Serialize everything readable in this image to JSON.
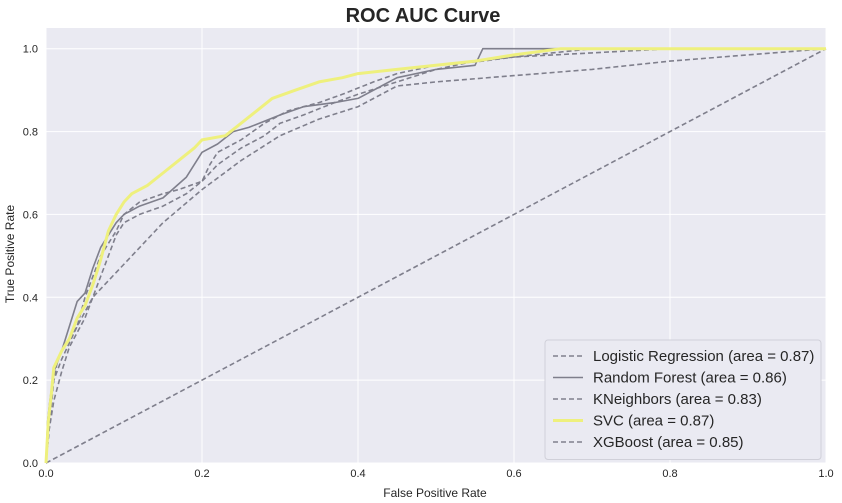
{
  "chart_data": {
    "type": "line",
    "title": "ROC AUC Curve",
    "xlabel": "False Positive Rate",
    "ylabel": "True Positive Rate",
    "xlim": [
      0,
      1
    ],
    "ylim": [
      0,
      1.05
    ],
    "x_ticks": [
      "0.0",
      "0.2",
      "0.4",
      "0.6",
      "0.8",
      "1.0"
    ],
    "y_ticks": [
      "0.0",
      "0.2",
      "0.4",
      "0.6",
      "0.8",
      "1.0"
    ],
    "grid": true,
    "background": "#eaeaf2",
    "legend_position": "lower right",
    "series": [
      {
        "name": "Logistic Regression (area = 0.87)",
        "color": "#7f7f8c",
        "style": "dashed",
        "points": [
          [
            0,
            0
          ],
          [
            0.003,
            0.08
          ],
          [
            0.005,
            0.15
          ],
          [
            0.01,
            0.2
          ],
          [
            0.015,
            0.25
          ],
          [
            0.02,
            0.27
          ],
          [
            0.03,
            0.3
          ],
          [
            0.04,
            0.33
          ],
          [
            0.05,
            0.4
          ],
          [
            0.07,
            0.5
          ],
          [
            0.09,
            0.56
          ],
          [
            0.1,
            0.6
          ],
          [
            0.12,
            0.63
          ],
          [
            0.15,
            0.65
          ],
          [
            0.17,
            0.66
          ],
          [
            0.2,
            0.68
          ],
          [
            0.21,
            0.72
          ],
          [
            0.22,
            0.75
          ],
          [
            0.25,
            0.78
          ],
          [
            0.28,
            0.82
          ],
          [
            0.31,
            0.85
          ],
          [
            0.35,
            0.87
          ],
          [
            0.38,
            0.89
          ],
          [
            0.42,
            0.92
          ],
          [
            0.45,
            0.94
          ],
          [
            0.5,
            0.96
          ],
          [
            0.56,
            0.97
          ],
          [
            0.6,
            0.98
          ],
          [
            0.7,
            1.0
          ],
          [
            1,
            1
          ]
        ]
      },
      {
        "name": "Random Forest (area = 0.86)",
        "color": "#7f7f8c",
        "style": "solid",
        "points": [
          [
            0,
            0
          ],
          [
            0.002,
            0.1
          ],
          [
            0.005,
            0.15
          ],
          [
            0.01,
            0.22
          ],
          [
            0.02,
            0.27
          ],
          [
            0.03,
            0.33
          ],
          [
            0.04,
            0.39
          ],
          [
            0.05,
            0.41
          ],
          [
            0.06,
            0.47
          ],
          [
            0.07,
            0.52
          ],
          [
            0.08,
            0.55
          ],
          [
            0.09,
            0.58
          ],
          [
            0.1,
            0.6
          ],
          [
            0.12,
            0.62
          ],
          [
            0.15,
            0.64
          ],
          [
            0.18,
            0.69
          ],
          [
            0.2,
            0.75
          ],
          [
            0.22,
            0.77
          ],
          [
            0.24,
            0.8
          ],
          [
            0.26,
            0.81
          ],
          [
            0.3,
            0.84
          ],
          [
            0.33,
            0.86
          ],
          [
            0.37,
            0.87
          ],
          [
            0.4,
            0.88
          ],
          [
            0.45,
            0.93
          ],
          [
            0.5,
            0.95
          ],
          [
            0.55,
            0.96
          ],
          [
            0.56,
            1.0
          ],
          [
            1,
            1
          ]
        ]
      },
      {
        "name": "KNeighbors (area = 0.83)",
        "color": "#7f7f8c",
        "style": "dashed",
        "points": [
          [
            0,
            0
          ],
          [
            0.005,
            0.1
          ],
          [
            0.01,
            0.2
          ],
          [
            0.02,
            0.25
          ],
          [
            0.04,
            0.33
          ],
          [
            0.06,
            0.4
          ],
          [
            0.08,
            0.44
          ],
          [
            0.11,
            0.5
          ],
          [
            0.15,
            0.58
          ],
          [
            0.2,
            0.66
          ],
          [
            0.25,
            0.73
          ],
          [
            0.3,
            0.79
          ],
          [
            0.35,
            0.83
          ],
          [
            0.4,
            0.86
          ],
          [
            0.45,
            0.91
          ],
          [
            0.5,
            0.92
          ],
          [
            0.6,
            0.935
          ],
          [
            0.7,
            0.95
          ],
          [
            0.8,
            0.97
          ],
          [
            0.9,
            0.985
          ],
          [
            1,
            1
          ]
        ]
      },
      {
        "name": "SVC (area = 0.87)",
        "color": "#eef07d",
        "style": "solid",
        "points": [
          [
            0,
            0
          ],
          [
            0.003,
            0.1
          ],
          [
            0.007,
            0.17
          ],
          [
            0.01,
            0.23
          ],
          [
            0.02,
            0.27
          ],
          [
            0.03,
            0.3
          ],
          [
            0.04,
            0.35
          ],
          [
            0.05,
            0.38
          ],
          [
            0.06,
            0.43
          ],
          [
            0.07,
            0.49
          ],
          [
            0.08,
            0.56
          ],
          [
            0.09,
            0.6
          ],
          [
            0.1,
            0.63
          ],
          [
            0.11,
            0.65
          ],
          [
            0.13,
            0.67
          ],
          [
            0.15,
            0.7
          ],
          [
            0.17,
            0.73
          ],
          [
            0.19,
            0.76
          ],
          [
            0.2,
            0.78
          ],
          [
            0.23,
            0.79
          ],
          [
            0.25,
            0.82
          ],
          [
            0.27,
            0.85
          ],
          [
            0.29,
            0.88
          ],
          [
            0.32,
            0.9
          ],
          [
            0.35,
            0.92
          ],
          [
            0.38,
            0.93
          ],
          [
            0.4,
            0.94
          ],
          [
            0.45,
            0.95
          ],
          [
            0.5,
            0.96
          ],
          [
            0.55,
            0.97
          ],
          [
            0.6,
            0.985
          ],
          [
            0.66,
            1.0
          ],
          [
            1,
            1
          ]
        ]
      },
      {
        "name": "XGBoost (area = 0.85)",
        "color": "#7f7f8c",
        "style": "dashed",
        "points": [
          [
            0,
            0
          ],
          [
            0.004,
            0.08
          ],
          [
            0.01,
            0.15
          ],
          [
            0.02,
            0.22
          ],
          [
            0.03,
            0.28
          ],
          [
            0.05,
            0.35
          ],
          [
            0.07,
            0.45
          ],
          [
            0.09,
            0.55
          ],
          [
            0.1,
            0.58
          ],
          [
            0.12,
            0.6
          ],
          [
            0.15,
            0.62
          ],
          [
            0.18,
            0.65
          ],
          [
            0.2,
            0.68
          ],
          [
            0.22,
            0.72
          ],
          [
            0.25,
            0.76
          ],
          [
            0.28,
            0.79
          ],
          [
            0.3,
            0.82
          ],
          [
            0.33,
            0.84
          ],
          [
            0.37,
            0.87
          ],
          [
            0.4,
            0.89
          ],
          [
            0.45,
            0.92
          ],
          [
            0.5,
            0.95
          ],
          [
            0.55,
            0.97
          ],
          [
            0.6,
            0.98
          ],
          [
            0.7,
            0.99
          ],
          [
            0.8,
            1.0
          ],
          [
            1,
            1
          ]
        ]
      },
      {
        "name": "",
        "color": "#7f7f8c",
        "style": "dashed",
        "points": [
          [
            0,
            0
          ],
          [
            1,
            1
          ]
        ]
      }
    ]
  }
}
